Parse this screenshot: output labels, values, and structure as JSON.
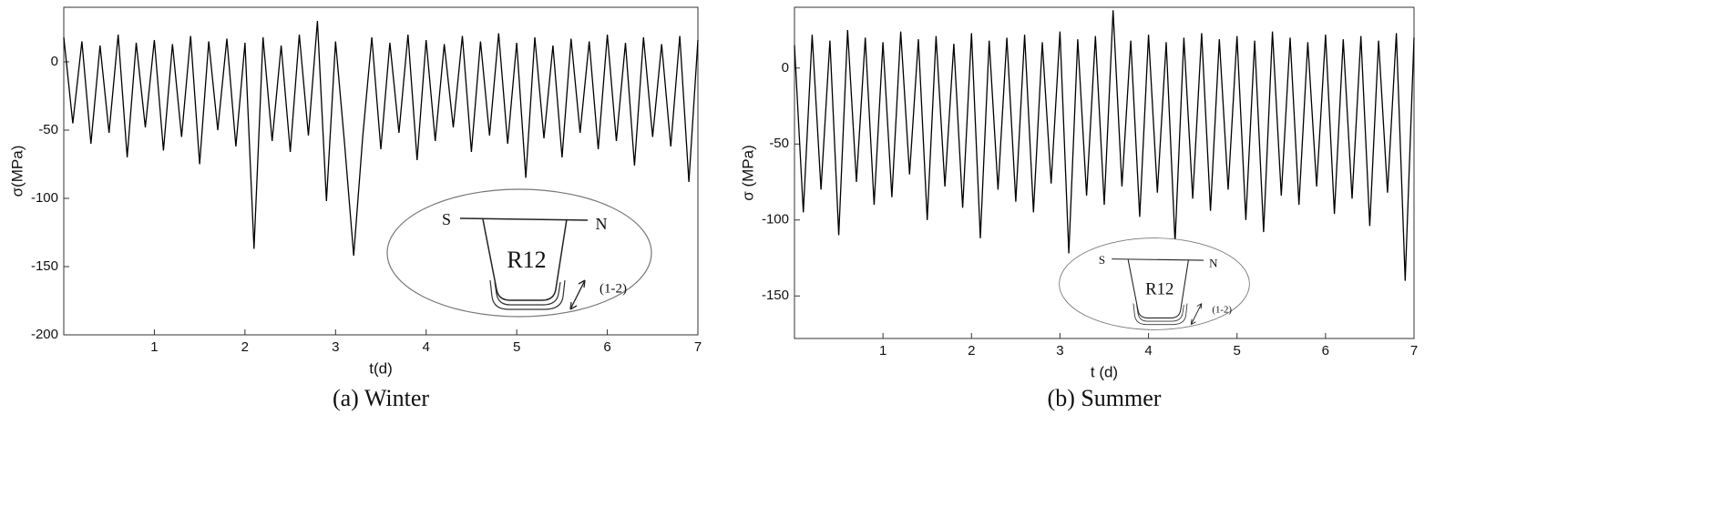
{
  "chart_data": [
    {
      "type": "line",
      "caption": "(a) Winter",
      "xlabel": "t(d)",
      "ylabel": "σ(MPa)",
      "x": [
        0,
        0.1,
        0.2,
        0.3,
        0.4,
        0.5,
        0.6,
        0.7,
        0.8,
        0.9,
        1,
        1.1,
        1.2,
        1.3,
        1.4,
        1.5,
        1.6,
        1.7,
        1.8,
        1.9,
        2,
        2.1,
        2.2,
        2.3,
        2.4,
        2.5,
        2.6,
        2.7,
        2.8,
        2.9,
        3,
        3.1,
        3.2,
        3.3,
        3.4,
        3.5,
        3.6,
        3.7,
        3.8,
        3.9,
        4,
        4.1,
        4.2,
        4.3,
        4.4,
        4.5,
        4.6,
        4.7,
        4.8,
        4.9,
        5,
        5.1,
        5.2,
        5.3,
        5.4,
        5.5,
        5.6,
        5.7,
        5.8,
        5.9,
        6,
        6.1,
        6.2,
        6.3,
        6.4,
        6.5,
        6.6,
        6.7,
        6.8,
        6.9,
        7
      ],
      "values": [
        18,
        -45,
        15,
        -60,
        12,
        -52,
        20,
        -70,
        14,
        -48,
        16,
        -65,
        13,
        -55,
        19,
        -75,
        15,
        -50,
        17,
        -62,
        14,
        -137,
        18,
        -58,
        12,
        -66,
        20,
        -54,
        30,
        -102,
        15,
        -60,
        -142,
        -55,
        18,
        -64,
        14,
        -52,
        20,
        -72,
        16,
        -58,
        13,
        -48,
        19,
        -66,
        15,
        -54,
        21,
        -60,
        14,
        -85,
        18,
        -56,
        12,
        -70,
        17,
        -52,
        15,
        -64,
        20,
        -58,
        14,
        -76,
        18,
        -55,
        13,
        -62,
        19,
        -88,
        16
      ],
      "color": "#000000",
      "xlim": [
        0,
        7
      ],
      "xticks": [
        1,
        2,
        3,
        4,
        5,
        6,
        7
      ],
      "ylim": [
        -200,
        40
      ],
      "yticks": [
        -200,
        -150,
        -100,
        -50,
        0
      ],
      "inset": {
        "left": "S",
        "right": "N",
        "center": "R12",
        "note": "(1-2)"
      }
    },
    {
      "type": "line",
      "caption": "(b) Summer",
      "xlabel": "t (d)",
      "ylabel": "σ (MPa)",
      "x": [
        0,
        0.1,
        0.2,
        0.3,
        0.4,
        0.5,
        0.6,
        0.7,
        0.8,
        0.9,
        1,
        1.1,
        1.2,
        1.3,
        1.4,
        1.5,
        1.6,
        1.7,
        1.8,
        1.9,
        2,
        2.1,
        2.2,
        2.3,
        2.4,
        2.5,
        2.6,
        2.7,
        2.8,
        2.9,
        3,
        3.1,
        3.2,
        3.3,
        3.4,
        3.5,
        3.6,
        3.7,
        3.8,
        3.9,
        4,
        4.1,
        4.2,
        4.3,
        4.4,
        4.5,
        4.6,
        4.7,
        4.8,
        4.9,
        5,
        5.1,
        5.2,
        5.3,
        5.4,
        5.5,
        5.6,
        5.7,
        5.8,
        5.9,
        6,
        6.1,
        6.2,
        6.3,
        6.4,
        6.5,
        6.6,
        6.7,
        6.8,
        6.9,
        7
      ],
      "values": [
        15,
        -95,
        22,
        -80,
        18,
        -110,
        25,
        -75,
        20,
        -90,
        17,
        -85,
        24,
        -70,
        19,
        -100,
        21,
        -78,
        16,
        -92,
        23,
        -112,
        18,
        -80,
        20,
        -88,
        22,
        -95,
        17,
        -76,
        24,
        -122,
        19,
        -84,
        21,
        -90,
        38,
        -78,
        18,
        -98,
        22,
        -82,
        17,
        -115,
        20,
        -86,
        23,
        -94,
        19,
        -80,
        21,
        -100,
        18,
        -108,
        24,
        -84,
        20,
        -90,
        17,
        -78,
        22,
        -96,
        19,
        -86,
        21,
        -104,
        18,
        -82,
        23,
        -140,
        20
      ],
      "color": "#000000",
      "xlim": [
        0,
        7
      ],
      "xticks": [
        1,
        2,
        3,
        4,
        5,
        6,
        7
      ],
      "ylim": [
        -178,
        40
      ],
      "yticks": [
        -150,
        -100,
        -50,
        0
      ],
      "inset": {
        "left": "S",
        "right": "N",
        "center": "R12",
        "note": "(1-2)"
      }
    }
  ]
}
